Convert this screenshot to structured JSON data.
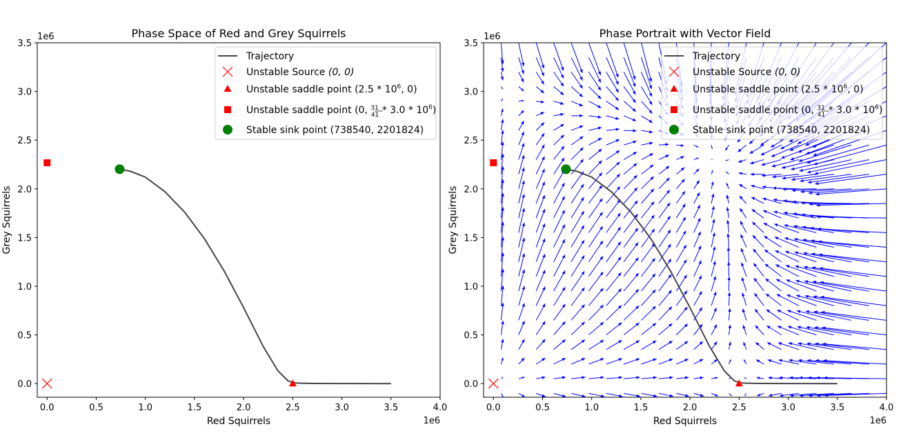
{
  "chart_data": [
    {
      "type": "line",
      "title": "Phase Space of Red and Grey Squirrels",
      "xlabel": "Red Squirrels",
      "ylabel": "Grey Squirrels",
      "x_offset_text": "1e6",
      "y_offset_text": "1e6",
      "xlim": [
        -0.1,
        4.0
      ],
      "ylim": [
        -0.14,
        3.5
      ],
      "x_ticks": [
        0.0,
        0.5,
        1.0,
        1.5,
        2.0,
        2.5,
        3.0,
        3.5,
        4.0
      ],
      "y_ticks": [
        0.0,
        0.5,
        1.0,
        1.5,
        2.0,
        2.5,
        3.0,
        3.5
      ],
      "x_tick_labels": [
        "0.0",
        "0.5",
        "1.0",
        "1.5",
        "2.0",
        "2.5",
        "3.0",
        "3.5",
        "4.0"
      ],
      "y_tick_labels": [
        "0.0",
        "0.5",
        "1.0",
        "1.5",
        "2.0",
        "2.5",
        "3.0",
        "3.5"
      ],
      "grid": false,
      "legend_position": "top-right",
      "series": [
        {
          "name": "Trajectory",
          "kind": "line",
          "color": "#444444",
          "x": [
            0.7385,
            0.85,
            1.0,
            1.2,
            1.4,
            1.6,
            1.8,
            2.0,
            2.2,
            2.35,
            2.45,
            2.5,
            2.55,
            2.7,
            3.0,
            3.5
          ],
          "y": [
            2.2018,
            2.18,
            2.12,
            1.97,
            1.76,
            1.49,
            1.16,
            0.78,
            0.38,
            0.13,
            0.03,
            0.01,
            0.005,
            0.002,
            0.001,
            0.0
          ]
        },
        {
          "name": "Unstable Source",
          "label_math": "(0, 0)",
          "kind": "marker",
          "marker": "x",
          "color": "#ff0000",
          "x": [
            0.0
          ],
          "y": [
            0.0
          ]
        },
        {
          "name": "Unstable saddle point",
          "label_math": "(2.5 * 10^6, 0)",
          "kind": "marker",
          "marker": "triangle",
          "color": "#ff0000",
          "x": [
            2.5
          ],
          "y": [
            0.0
          ]
        },
        {
          "name": "Unstable saddle point",
          "label_math": "(0, 31/41 * 3.0 * 10^6)",
          "kind": "marker",
          "marker": "square",
          "color": "#ff0000",
          "x": [
            0.0
          ],
          "y": [
            2.268
          ]
        },
        {
          "name": "Stable sink point",
          "label_math": "(738540, 2201824)",
          "kind": "marker",
          "marker": "circle",
          "color": "#008000",
          "x": [
            0.7385
          ],
          "y": [
            2.2018
          ]
        }
      ]
    },
    {
      "type": "line",
      "title": "Phase Portrait with Vector Field",
      "xlabel": "Red Squirrels",
      "ylabel": "Grey Squirrels",
      "x_offset_text": "1e6",
      "y_offset_text": "1e6",
      "xlim": [
        -0.1,
        4.0
      ],
      "ylim": [
        -0.14,
        3.5
      ],
      "x_ticks": [
        0.0,
        0.5,
        1.0,
        1.5,
        2.0,
        2.5,
        3.0,
        3.5,
        4.0
      ],
      "y_ticks": [
        0.0,
        0.5,
        1.0,
        1.5,
        2.0,
        2.5,
        3.0,
        3.5
      ],
      "x_tick_labels": [
        "0.0",
        "0.5",
        "1.0",
        "1.5",
        "2.0",
        "2.5",
        "3.0",
        "3.5",
        "4.0"
      ],
      "y_tick_labels": [
        "0.0",
        "0.5",
        "1.0",
        "1.5",
        "2.0",
        "2.5",
        "3.0",
        "3.5"
      ],
      "grid": false,
      "legend_position": "top-right",
      "vector_field": {
        "color": "#0000ff",
        "x_min": -0.1,
        "x_max": 4.0,
        "y_min": -0.1,
        "y_max": 3.5,
        "nx": 24,
        "ny": 25,
        "model": {
          "r_red": 0.3,
          "K_red": 2.5,
          "r_grey": 0.4,
          "K_grey": 3.0,
          "a": 0.1,
          "b": 0.31
        }
      },
      "series": [
        {
          "name": "Trajectory",
          "kind": "line",
          "color": "#444444",
          "x": [
            0.7385,
            0.85,
            1.0,
            1.2,
            1.4,
            1.6,
            1.8,
            2.0,
            2.2,
            2.35,
            2.45,
            2.5,
            2.55,
            2.7,
            3.0,
            3.5
          ],
          "y": [
            2.2018,
            2.18,
            2.12,
            1.97,
            1.76,
            1.49,
            1.16,
            0.78,
            0.38,
            0.13,
            0.03,
            0.01,
            0.005,
            0.002,
            0.001,
            0.0
          ]
        },
        {
          "name": "Unstable Source",
          "label_math": "(0, 0)",
          "kind": "marker",
          "marker": "x",
          "color": "#ff0000",
          "x": [
            0.0
          ],
          "y": [
            0.0
          ]
        },
        {
          "name": "Unstable saddle point",
          "label_math": "(2.5 * 10^6, 0)",
          "kind": "marker",
          "marker": "triangle",
          "color": "#ff0000",
          "x": [
            2.5
          ],
          "y": [
            0.0
          ]
        },
        {
          "name": "Unstable saddle point",
          "label_math": "(0, 31/41 * 3.0 * 10^6)",
          "kind": "marker",
          "marker": "square",
          "color": "#ff0000",
          "x": [
            0.0
          ],
          "y": [
            2.268
          ]
        },
        {
          "name": "Stable sink point",
          "label_math": "(738540, 2201824)",
          "kind": "marker",
          "marker": "circle",
          "color": "#008000",
          "x": [
            0.7385
          ],
          "y": [
            2.2018
          ]
        }
      ]
    }
  ]
}
